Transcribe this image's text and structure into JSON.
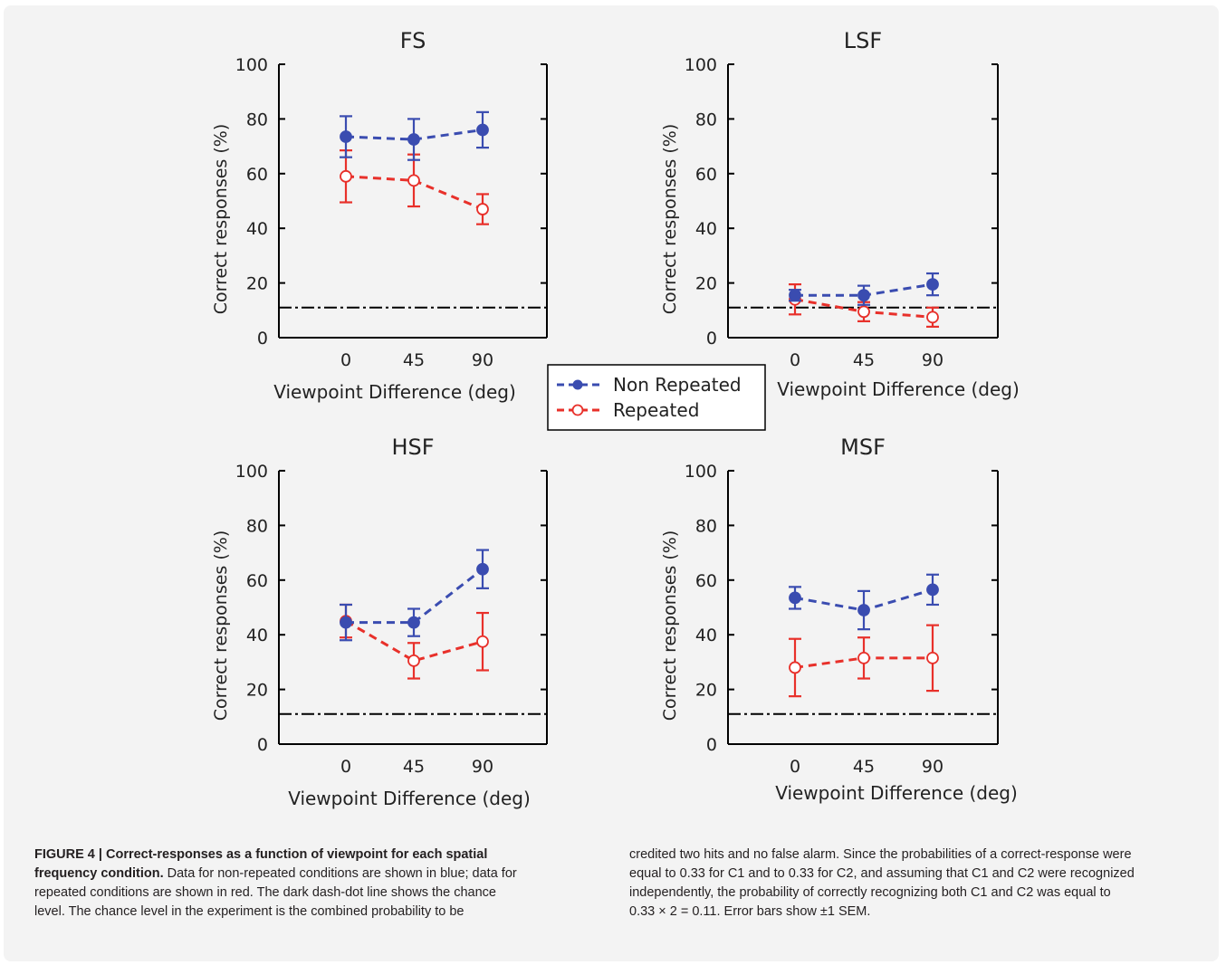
{
  "figure": {
    "caption_heading": "FIGURE 4 | Correct-responses as a function of viewpoint for each spatial frequency condition.",
    "caption_left": "Data for non-repeated conditions are shown in blue; data for repeated conditions are shown in red. The dark dash-dot line shows the chance level. The chance level in the experiment is the combined probability to be",
    "caption_right": "credited two hits and no false alarm. Since the probabilities of a correct-response were equal to 0.33 for C1 and to 0.33 for C2, and assuming that C1 and C2 were recognized independently, the probability of correctly recognizing both C1 and C2 was equal to 0.33 × 2 = 0.11. Error bars show ±1 SEM."
  },
  "legend": {
    "items": [
      {
        "label": "Non Repeated",
        "color": "#3a4cb0",
        "marker": "filled-circle"
      },
      {
        "label": "Repeated",
        "color": "#e8302a",
        "marker": "open-circle"
      }
    ]
  },
  "colors": {
    "non_repeated": "#3a4cb0",
    "repeated": "#e8302a",
    "chance": "#000000"
  },
  "chart_data": [
    {
      "type": "line",
      "title": "FS",
      "xlabel": "Viewpoint Difference (deg)",
      "ylabel": "Correct responses (%)",
      "x": [
        0,
        45,
        90
      ],
      "ylim": [
        0,
        100
      ],
      "yticks": [
        0,
        20,
        40,
        60,
        80,
        100
      ],
      "chance_level": 11,
      "series": [
        {
          "name": "Non Repeated",
          "values": [
            73.5,
            72.5,
            76
          ],
          "error": [
            7.5,
            7.5,
            6.5
          ]
        },
        {
          "name": "Repeated",
          "values": [
            59,
            57.5,
            47
          ],
          "error": [
            9.5,
            9.5,
            5.5
          ]
        }
      ]
    },
    {
      "type": "line",
      "title": "LSF",
      "xlabel": "Viewpoint Difference (deg)",
      "ylabel": "Correct responses (%)",
      "x": [
        0,
        45,
        90
      ],
      "ylim": [
        0,
        100
      ],
      "yticks": [
        0,
        20,
        40,
        60,
        80,
        100
      ],
      "chance_level": 11,
      "series": [
        {
          "name": "Non Repeated",
          "values": [
            15.5,
            15.5,
            19.5
          ],
          "error": [
            2,
            3.5,
            4
          ]
        },
        {
          "name": "Repeated",
          "values": [
            14,
            9.5,
            7.5
          ],
          "error": [
            5.5,
            3.5,
            3.5
          ]
        }
      ]
    },
    {
      "type": "line",
      "title": "HSF",
      "xlabel": "Viewpoint Difference (deg)",
      "ylabel": "Correct responses (%)",
      "x": [
        0,
        45,
        90
      ],
      "ylim": [
        0,
        100
      ],
      "yticks": [
        0,
        20,
        40,
        60,
        80,
        100
      ],
      "chance_level": 11,
      "series": [
        {
          "name": "Non Repeated",
          "values": [
            44.5,
            44.5,
            64
          ],
          "error": [
            6.5,
            5,
            7
          ]
        },
        {
          "name": "Repeated",
          "values": [
            45,
            30.5,
            37.5
          ],
          "error": [
            6,
            6.5,
            10.5
          ]
        }
      ]
    },
    {
      "type": "line",
      "title": "MSF",
      "xlabel": "Viewpoint Difference (deg)",
      "ylabel": "Correct responses (%)",
      "x": [
        0,
        45,
        90
      ],
      "ylim": [
        0,
        100
      ],
      "yticks": [
        0,
        20,
        40,
        60,
        80,
        100
      ],
      "chance_level": 11,
      "series": [
        {
          "name": "Non Repeated",
          "values": [
            53.5,
            49,
            56.5
          ],
          "error": [
            4,
            7,
            5.5
          ]
        },
        {
          "name": "Repeated",
          "values": [
            28,
            31.5,
            31.5
          ],
          "error": [
            10.5,
            7.5,
            12
          ]
        }
      ]
    }
  ]
}
